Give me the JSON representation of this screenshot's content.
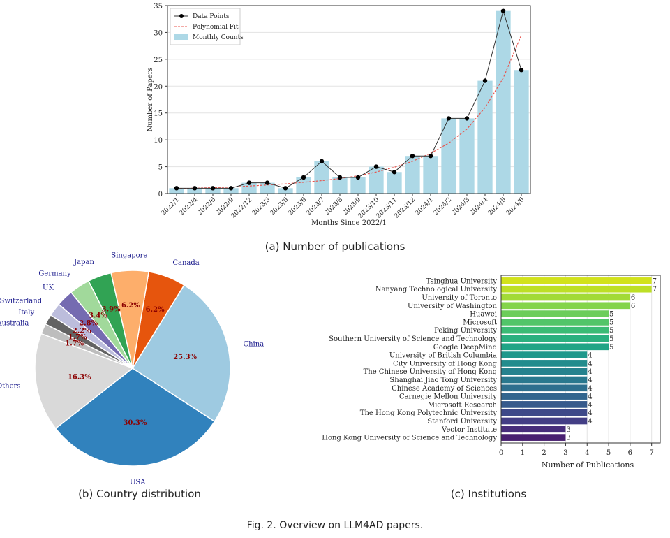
{
  "chart_data": [
    {
      "type": "bar",
      "categories": [
        "2022/1",
        "2022/4",
        "2022/6",
        "2022/9",
        "2022/12",
        "2023/3",
        "2023/5",
        "2023/6",
        "2023/7",
        "2023/8",
        "2023/9",
        "2023/10",
        "2023/11",
        "2023/12",
        "2024/1",
        "2024/2",
        "2024/3",
        "2024/4",
        "2024/5",
        "2024/6"
      ],
      "values": [
        1,
        1,
        1,
        1,
        2,
        2,
        1,
        3,
        6,
        3,
        3,
        5,
        4,
        7,
        7,
        14,
        14,
        21,
        34,
        23
      ],
      "fit": [
        0.9,
        1.0,
        1.1,
        1.2,
        1.4,
        1.6,
        1.8,
        2.1,
        2.4,
        2.8,
        3.3,
        4.0,
        4.9,
        6.0,
        7.5,
        9.4,
        12.0,
        16.0,
        21.5,
        29.5
      ],
      "series": [
        {
          "name": "Data Points"
        },
        {
          "name": "Polynomial Fit"
        },
        {
          "name": "Monthly Counts"
        }
      ],
      "xlabel": "Months Since 2022/1",
      "ylabel": "Number of Papers",
      "yticks": [
        0,
        5,
        10,
        15,
        20,
        25,
        30,
        35
      ],
      "ylim": [
        0,
        35
      ],
      "grid": true,
      "legend": "top-left",
      "colors": {
        "bar": "#add8e6",
        "point": "#000000",
        "line": "#333333",
        "fit": "#e8554e"
      }
    },
    {
      "type": "pie",
      "slices": [
        {
          "label": "USA",
          "value": 30.3,
          "pct": "30.3%",
          "color": "#3182bd"
        },
        {
          "label": "China",
          "value": 25.3,
          "pct": "25.3%",
          "color": "#9ecae1"
        },
        {
          "label": "Canada",
          "value": 6.2,
          "pct": "6.2%",
          "color": "#e6550d"
        },
        {
          "label": "Singapore",
          "value": 6.2,
          "pct": "6.2%",
          "color": "#fdae6b"
        },
        {
          "label": "Japan",
          "value": 3.9,
          "pct": "3.9%",
          "color": "#31a354"
        },
        {
          "label": "Germany",
          "value": 3.4,
          "pct": "3.4%",
          "color": "#a1d99b"
        },
        {
          "label": "UK",
          "value": 2.8,
          "pct": "2.8%",
          "color": "#756bb1"
        },
        {
          "label": "Switzerland",
          "value": 2.2,
          "pct": "2.2%",
          "color": "#bcbddc"
        },
        {
          "label": "Italy",
          "value": 1.7,
          "pct": "1.7%",
          "color": "#636363"
        },
        {
          "label": "Australia",
          "value": 1.7,
          "pct": "1.7%",
          "color": "#bdbdbd"
        },
        {
          "label": "Others",
          "value": 16.3,
          "pct": "16.3%",
          "color": "#d9d9d9"
        }
      ],
      "label_color": "#1a1a8c",
      "pct_color": "#8b0000"
    },
    {
      "type": "bar",
      "orientation": "horizontal",
      "categories": [
        "Tsinghua University",
        "Nanyang Technological University",
        "University of Toronto",
        "University of Washington",
        "Huawei",
        "Microsoft",
        "Peking University",
        "Southern University of Science and Technology",
        "Google DeepMind",
        "University of British Columbia",
        "City University of Hong Kong",
        "The Chinese University of Hong Kong",
        "Shanghai Jiao Tong University",
        "Chinese Academy of Sciences",
        "Carnegie Mellon University",
        "Microsoft Research",
        "The Hong Kong Polytechnic University",
        "Stanford University",
        "Vector Institute",
        "Hong Kong University of Science and Technology"
      ],
      "values": [
        7,
        7,
        6,
        6,
        5,
        5,
        5,
        5,
        5,
        4,
        4,
        4,
        4,
        4,
        4,
        4,
        4,
        4,
        3,
        3
      ],
      "colors": [
        "#d2e21b",
        "#bddf26",
        "#a2da37",
        "#84d44b",
        "#6ccd5a",
        "#52c569",
        "#3bbb75",
        "#2ab07f",
        "#20a486",
        "#1f988b",
        "#228c8d",
        "#26828e",
        "#2a788e",
        "#2e6f8e",
        "#32658e",
        "#375a8c",
        "#3e4989",
        "#433e85",
        "#472d7b",
        "#481f70"
      ],
      "xlabel": "Number of Publications",
      "xticks": [
        0,
        1,
        2,
        3,
        4,
        5,
        6,
        7
      ],
      "xlim": [
        0,
        7.4
      ]
    }
  ],
  "captions": {
    "a": "(a) Number of publications",
    "b": "(b) Country distribution",
    "c": "(c) Institutions",
    "figure": "Fig. 2.  Overview on LLM4AD papers."
  }
}
